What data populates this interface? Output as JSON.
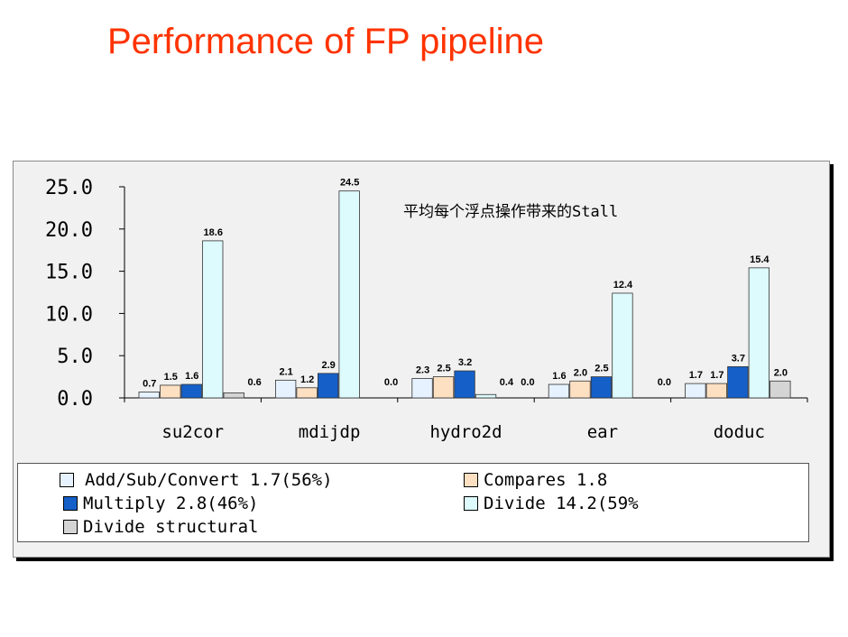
{
  "slide": {
    "title": "Performance of FP pipeline"
  },
  "chart_data": {
    "type": "bar",
    "title": "平均每个浮点操作带来的Stall",
    "categories": [
      "su2cor",
      "mdijdp",
      "hydro2d",
      "ear",
      "doduc"
    ],
    "ylim": [
      0,
      25
    ],
    "yticks": [
      0,
      5,
      10,
      15,
      20,
      25
    ],
    "ytick_labels": [
      "0.0",
      "5.0",
      "10.0",
      "15.0",
      "20.0",
      "25.0"
    ],
    "grid": false,
    "legend_position": "bottom",
    "series": [
      {
        "name": "Add/Sub/Convert 1.7(56%)",
        "color": "#e6f2ff",
        "values": [
          0.7,
          2.1,
          2.3,
          1.6,
          1.7
        ]
      },
      {
        "name": "Compares 1.8",
        "color": "#fde0c2",
        "values": [
          1.5,
          1.2,
          2.5,
          2.0,
          1.7
        ]
      },
      {
        "name": "Multiply 2.8(46%)",
        "color": "#1560c8",
        "values": [
          1.6,
          2.9,
          3.2,
          2.5,
          3.7
        ]
      },
      {
        "name": "Divide 14.2(59%",
        "color": "#ddfafc",
        "values": [
          18.6,
          24.5,
          0.4,
          12.4,
          15.4
        ]
      },
      {
        "name": "Divide structural",
        "color": "#d4d4d4",
        "values": [
          0.6,
          0.0,
          0.0,
          0.0,
          2.0
        ]
      }
    ],
    "data_labels": [
      [
        "0.7",
        "2.1",
        "2.3",
        "1.6",
        "1.7"
      ],
      [
        "1.5",
        "1.2",
        "2.5",
        "2.0",
        "1.7"
      ],
      [
        "1.6",
        "2.9",
        "3.2",
        "2.5",
        "3.7"
      ],
      [
        "18.6",
        "24.5",
        "0.4",
        "12.4",
        "15.4"
      ],
      [
        "0.6",
        "0.0",
        "0.0",
        "0.0",
        "2.0"
      ]
    ]
  }
}
